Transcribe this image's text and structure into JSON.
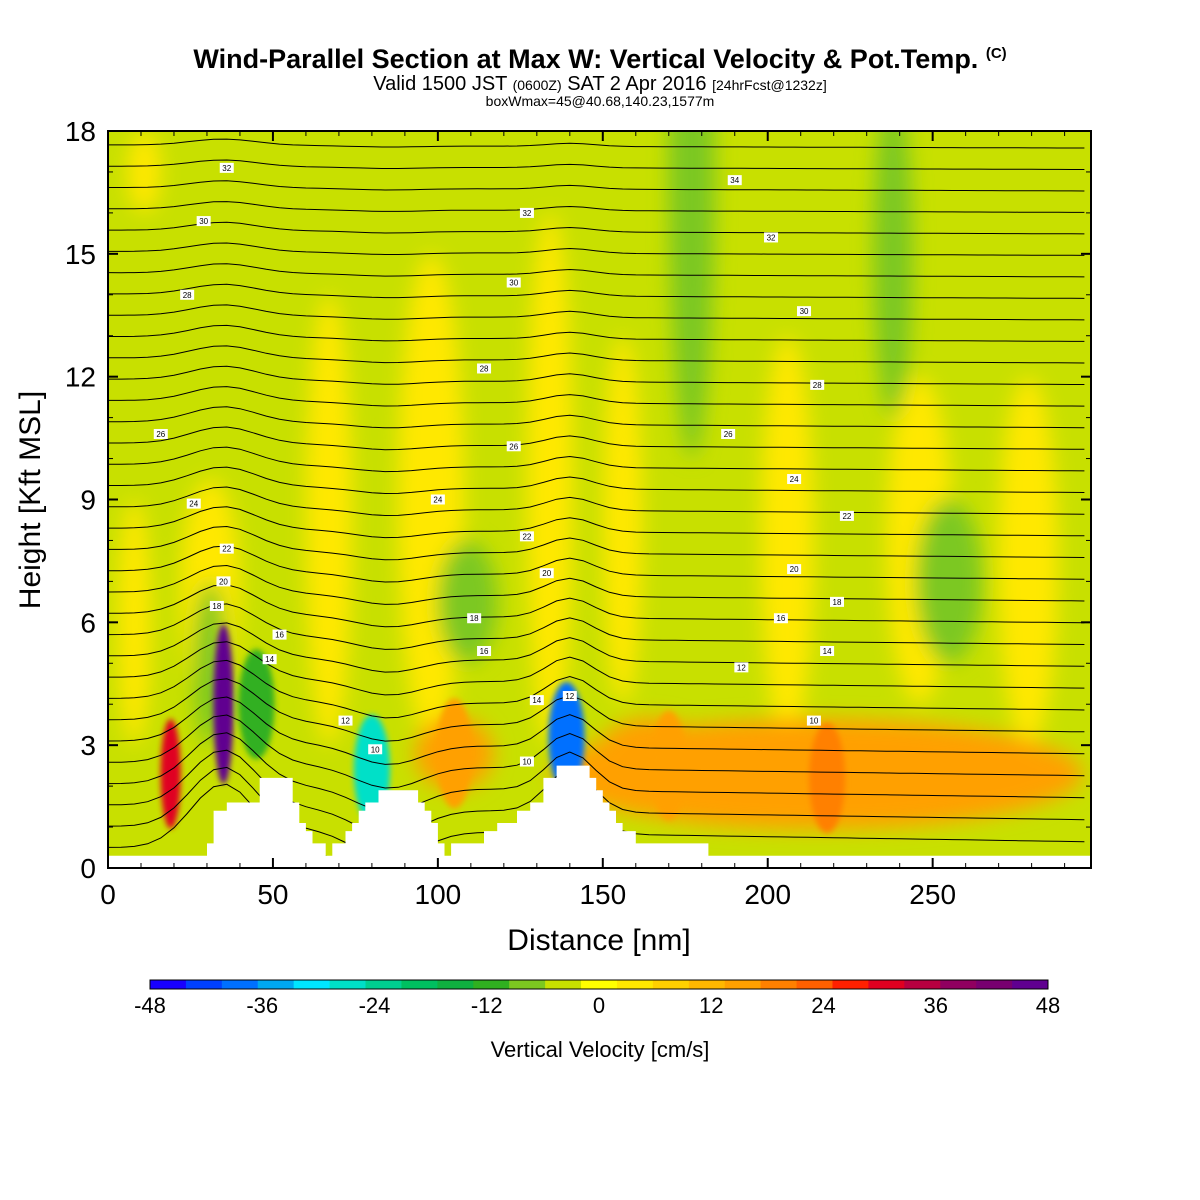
{
  "title": {
    "line1": "Wind-Parallel Section at Max W: Vertical Velocity & Pot.Temp.",
    "copyright": "(C)",
    "line2_a": "Valid 1500 JST",
    "line2_b": "(0600Z)",
    "line2_c": "SAT 2 Apr 2016",
    "line2_d": "[24hrFcst@1232z]",
    "line3": "boxWmax=45@40.68,140.23,1577m"
  },
  "chart_data": {
    "type": "heatmap",
    "xlabel": "Distance [nm]",
    "ylabel": "Height [Kft MSL]",
    "xlim": [
      0,
      298
    ],
    "ylim": [
      0,
      18
    ],
    "x_ticks": [
      "0",
      "50",
      "100",
      "150",
      "200",
      "250"
    ],
    "y_ticks": [
      "0",
      "3",
      "6",
      "9",
      "12",
      "15",
      "18"
    ],
    "colorbar": {
      "label": "Vertical Velocity [cm/s]",
      "range": [
        -48,
        48
      ],
      "tick_labels": [
        "-48",
        "-36",
        "-24",
        "-12",
        "0",
        "12",
        "24",
        "36",
        "48"
      ],
      "colors": [
        "#1800ff",
        "#0040ff",
        "#0070ff",
        "#00a8f0",
        "#00e6ff",
        "#00e0c8",
        "#00d090",
        "#00c060",
        "#10b040",
        "#30b020",
        "#7cc820",
        "#c8e000",
        "#ffff00",
        "#ffe800",
        "#ffd000",
        "#ffb800",
        "#ffa000",
        "#ff8000",
        "#ff6000",
        "#ff2000",
        "#e00020",
        "#b80040",
        "#900060",
        "#780070",
        "#600090"
      ]
    },
    "background_field_wcms": "about +2 to +6 (yellow) aloft, -2 to -6 (green) bands",
    "w_features": [
      {
        "x_nm": 19,
        "z_kft": 2.3,
        "w_cms": 30,
        "sign": "up"
      },
      {
        "x_nm": 35,
        "z_kft": 4.0,
        "w_cms": 48,
        "sign": "up"
      },
      {
        "x_nm": 45,
        "z_kft": 4.0,
        "w_cms": -12,
        "sign": "down"
      },
      {
        "x_nm": 80,
        "z_kft": 2.4,
        "w_cms": -30,
        "sign": "down"
      },
      {
        "x_nm": 105,
        "z_kft": 2.8,
        "w_cms": 15,
        "sign": "up"
      },
      {
        "x_nm": 139,
        "z_kft": 3.2,
        "w_cms": -40,
        "sign": "down"
      },
      {
        "x_nm": 170,
        "z_kft": 2.5,
        "w_cms": 15,
        "sign": "up"
      },
      {
        "x_nm": 218,
        "z_kft": 2.2,
        "w_cms": 18,
        "sign": "up"
      }
    ],
    "theta_contour_labels": [
      {
        "text": "32",
        "x_nm": 36,
        "z_kft": 17.1
      },
      {
        "text": "34",
        "x_nm": 190,
        "z_kft": 16.8
      },
      {
        "text": "32",
        "x_nm": 127,
        "z_kft": 16.0
      },
      {
        "text": "32",
        "x_nm": 201,
        "z_kft": 15.4
      },
      {
        "text": "30",
        "x_nm": 29,
        "z_kft": 15.8
      },
      {
        "text": "30",
        "x_nm": 123,
        "z_kft": 14.3
      },
      {
        "text": "30",
        "x_nm": 211,
        "z_kft": 13.6
      },
      {
        "text": "28",
        "x_nm": 24,
        "z_kft": 14.0
      },
      {
        "text": "28",
        "x_nm": 114,
        "z_kft": 12.2
      },
      {
        "text": "28",
        "x_nm": 215,
        "z_kft": 11.8
      },
      {
        "text": "26",
        "x_nm": 16,
        "z_kft": 10.6
      },
      {
        "text": "26",
        "x_nm": 123,
        "z_kft": 10.3
      },
      {
        "text": "26",
        "x_nm": 188,
        "z_kft": 10.6
      },
      {
        "text": "24",
        "x_nm": 26,
        "z_kft": 8.9
      },
      {
        "text": "24",
        "x_nm": 100,
        "z_kft": 9.0
      },
      {
        "text": "24",
        "x_nm": 208,
        "z_kft": 9.5
      },
      {
        "text": "22",
        "x_nm": 36,
        "z_kft": 7.8
      },
      {
        "text": "22",
        "x_nm": 127,
        "z_kft": 8.1
      },
      {
        "text": "22",
        "x_nm": 224,
        "z_kft": 8.6
      },
      {
        "text": "20",
        "x_nm": 35,
        "z_kft": 7.0
      },
      {
        "text": "20",
        "x_nm": 133,
        "z_kft": 7.2
      },
      {
        "text": "20",
        "x_nm": 208,
        "z_kft": 7.3
      },
      {
        "text": "18",
        "x_nm": 33,
        "z_kft": 6.4
      },
      {
        "text": "18",
        "x_nm": 111,
        "z_kft": 6.1
      },
      {
        "text": "18",
        "x_nm": 221,
        "z_kft": 6.5
      },
      {
        "text": "16",
        "x_nm": 52,
        "z_kft": 5.7
      },
      {
        "text": "16",
        "x_nm": 114,
        "z_kft": 5.3
      },
      {
        "text": "16",
        "x_nm": 204,
        "z_kft": 6.1
      },
      {
        "text": "14",
        "x_nm": 49,
        "z_kft": 5.1
      },
      {
        "text": "14",
        "x_nm": 130,
        "z_kft": 4.1
      },
      {
        "text": "14",
        "x_nm": 218,
        "z_kft": 5.3
      },
      {
        "text": "12",
        "x_nm": 72,
        "z_kft": 3.6
      },
      {
        "text": "12",
        "x_nm": 140,
        "z_kft": 4.2
      },
      {
        "text": "12",
        "x_nm": 192,
        "z_kft": 4.9
      },
      {
        "text": "10",
        "x_nm": 81,
        "z_kft": 2.9
      },
      {
        "text": "10",
        "x_nm": 127,
        "z_kft": 2.6
      },
      {
        "text": "10",
        "x_nm": 214,
        "z_kft": 3.6
      }
    ],
    "terrain_kft": [
      [
        0,
        0.3
      ],
      [
        30,
        0.3
      ],
      [
        30,
        0.6
      ],
      [
        32,
        0.6
      ],
      [
        32,
        1.4
      ],
      [
        36,
        1.4
      ],
      [
        36,
        1.6
      ],
      [
        46,
        1.6
      ],
      [
        46,
        2.2
      ],
      [
        56,
        2.2
      ],
      [
        56,
        1.6
      ],
      [
        58,
        1.6
      ],
      [
        58,
        1.1
      ],
      [
        60,
        1.1
      ],
      [
        60,
        0.9
      ],
      [
        62,
        0.9
      ],
      [
        62,
        0.6
      ],
      [
        66,
        0.6
      ],
      [
        66,
        0.3
      ],
      [
        68,
        0.3
      ],
      [
        68,
        0.6
      ],
      [
        72,
        0.6
      ],
      [
        72,
        0.9
      ],
      [
        74,
        0.9
      ],
      [
        74,
        1.1
      ],
      [
        76,
        1.1
      ],
      [
        76,
        1.4
      ],
      [
        78,
        1.4
      ],
      [
        78,
        1.6
      ],
      [
        82,
        1.6
      ],
      [
        82,
        1.9
      ],
      [
        94,
        1.9
      ],
      [
        94,
        1.6
      ],
      [
        96,
        1.6
      ],
      [
        96,
        1.4
      ],
      [
        98,
        1.4
      ],
      [
        98,
        1.1
      ],
      [
        100,
        1.1
      ],
      [
        100,
        0.6
      ],
      [
        102,
        0.6
      ],
      [
        102,
        0.3
      ],
      [
        104,
        0.3
      ],
      [
        104,
        0.6
      ],
      [
        114,
        0.6
      ],
      [
        114,
        0.9
      ],
      [
        118,
        0.9
      ],
      [
        118,
        1.1
      ],
      [
        124,
        1.1
      ],
      [
        124,
        1.4
      ],
      [
        128,
        1.4
      ],
      [
        128,
        1.6
      ],
      [
        132,
        1.6
      ],
      [
        132,
        2.2
      ],
      [
        136,
        2.2
      ],
      [
        136,
        2.5
      ],
      [
        146,
        2.5
      ],
      [
        146,
        2.2
      ],
      [
        148,
        2.2
      ],
      [
        148,
        1.9
      ],
      [
        150,
        1.9
      ],
      [
        150,
        1.6
      ],
      [
        152,
        1.6
      ],
      [
        152,
        1.4
      ],
      [
        154,
        1.4
      ],
      [
        154,
        1.1
      ],
      [
        156,
        1.1
      ],
      [
        156,
        0.9
      ],
      [
        160,
        0.9
      ],
      [
        160,
        0.6
      ],
      [
        182,
        0.6
      ],
      [
        182,
        0.3
      ],
      [
        298,
        0.3
      ]
    ]
  }
}
